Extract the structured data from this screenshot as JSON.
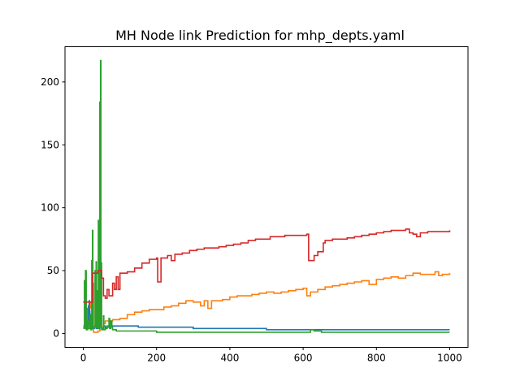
{
  "chart_data": {
    "type": "line",
    "title": "MH Node link Prediction for mhp_depts.yaml",
    "xlabel": "",
    "ylabel": "",
    "xlim": [
      -50,
      1050
    ],
    "ylim": [
      -11,
      228
    ],
    "xticks": [
      0,
      200,
      400,
      600,
      800,
      1000
    ],
    "yticks": [
      0,
      50,
      100,
      150,
      200
    ],
    "grid": false,
    "legend": "none",
    "series": [
      {
        "color": "#1f77b4",
        "points": [
          [
            0,
            5
          ],
          [
            2,
            6
          ],
          [
            4,
            18
          ],
          [
            5,
            6
          ],
          [
            7,
            4
          ],
          [
            9,
            20
          ],
          [
            10,
            6
          ],
          [
            12,
            4
          ],
          [
            14,
            22
          ],
          [
            15,
            8
          ],
          [
            16,
            26
          ],
          [
            17,
            18
          ],
          [
            18,
            6
          ],
          [
            20,
            4
          ],
          [
            22,
            8
          ],
          [
            24,
            5
          ],
          [
            26,
            4
          ],
          [
            30,
            6
          ],
          [
            35,
            4
          ],
          [
            40,
            4
          ],
          [
            45,
            5
          ],
          [
            50,
            4
          ],
          [
            55,
            6
          ],
          [
            60,
            5
          ],
          [
            70,
            6
          ],
          [
            80,
            6
          ],
          [
            100,
            6
          ],
          [
            150,
            5
          ],
          [
            200,
            5
          ],
          [
            250,
            5
          ],
          [
            300,
            4
          ],
          [
            350,
            4
          ],
          [
            400,
            4
          ],
          [
            450,
            4
          ],
          [
            500,
            3
          ],
          [
            550,
            3
          ],
          [
            600,
            3
          ],
          [
            650,
            3
          ],
          [
            700,
            3
          ],
          [
            750,
            3
          ],
          [
            800,
            3
          ],
          [
            850,
            3
          ],
          [
            900,
            3
          ],
          [
            950,
            3
          ],
          [
            1000,
            3
          ]
        ]
      },
      {
        "color": "#ff7f0e",
        "points": [
          [
            0,
            25
          ],
          [
            5,
            25
          ],
          [
            10,
            25
          ],
          [
            15,
            25
          ],
          [
            20,
            20
          ],
          [
            25,
            40
          ],
          [
            28,
            1
          ],
          [
            30,
            1
          ],
          [
            35,
            1
          ],
          [
            40,
            2
          ],
          [
            45,
            3
          ],
          [
            50,
            5
          ],
          [
            55,
            8
          ],
          [
            60,
            10
          ],
          [
            70,
            10
          ],
          [
            80,
            11
          ],
          [
            90,
            11
          ],
          [
            100,
            12
          ],
          [
            120,
            15
          ],
          [
            140,
            17
          ],
          [
            160,
            18
          ],
          [
            180,
            19
          ],
          [
            200,
            19
          ],
          [
            220,
            21
          ],
          [
            240,
            22
          ],
          [
            260,
            24
          ],
          [
            280,
            26
          ],
          [
            300,
            25
          ],
          [
            320,
            22
          ],
          [
            330,
            26
          ],
          [
            340,
            20
          ],
          [
            350,
            26
          ],
          [
            360,
            26
          ],
          [
            380,
            27
          ],
          [
            400,
            29
          ],
          [
            420,
            30
          ],
          [
            440,
            30
          ],
          [
            460,
            31
          ],
          [
            480,
            32
          ],
          [
            500,
            33
          ],
          [
            520,
            32
          ],
          [
            540,
            33
          ],
          [
            560,
            34
          ],
          [
            580,
            35
          ],
          [
            600,
            36
          ],
          [
            610,
            30
          ],
          [
            620,
            33
          ],
          [
            640,
            35
          ],
          [
            660,
            37
          ],
          [
            680,
            38
          ],
          [
            700,
            39
          ],
          [
            720,
            40
          ],
          [
            740,
            41
          ],
          [
            760,
            42
          ],
          [
            780,
            39
          ],
          [
            800,
            43
          ],
          [
            820,
            44
          ],
          [
            840,
            45
          ],
          [
            860,
            44
          ],
          [
            880,
            46
          ],
          [
            900,
            48
          ],
          [
            920,
            47
          ],
          [
            940,
            47
          ],
          [
            960,
            49
          ],
          [
            970,
            46
          ],
          [
            980,
            47
          ],
          [
            1000,
            48
          ]
        ]
      },
      {
        "color": "#2ca02c",
        "points": [
          [
            0,
            4
          ],
          [
            3,
            42
          ],
          [
            5,
            5
          ],
          [
            6,
            50
          ],
          [
            8,
            3
          ],
          [
            12,
            10
          ],
          [
            14,
            4
          ],
          [
            18,
            15
          ],
          [
            20,
            3
          ],
          [
            23,
            58
          ],
          [
            24,
            4
          ],
          [
            25,
            82
          ],
          [
            26,
            4
          ],
          [
            28,
            5
          ],
          [
            32,
            50
          ],
          [
            33,
            5
          ],
          [
            35,
            57
          ],
          [
            36,
            5
          ],
          [
            38,
            34
          ],
          [
            39,
            4
          ],
          [
            41,
            90
          ],
          [
            42,
            6
          ],
          [
            43,
            55
          ],
          [
            44,
            5
          ],
          [
            45,
            184
          ],
          [
            46,
            5
          ],
          [
            47,
            217
          ],
          [
            48,
            6
          ],
          [
            49,
            56
          ],
          [
            50,
            4
          ],
          [
            52,
            3
          ],
          [
            55,
            14
          ],
          [
            56,
            3
          ],
          [
            60,
            4
          ],
          [
            65,
            6
          ],
          [
            70,
            12
          ],
          [
            72,
            4
          ],
          [
            75,
            10
          ],
          [
            78,
            5
          ],
          [
            80,
            3
          ],
          [
            90,
            2
          ],
          [
            100,
            2
          ],
          [
            150,
            2
          ],
          [
            200,
            1
          ],
          [
            300,
            1
          ],
          [
            400,
            1
          ],
          [
            500,
            1
          ],
          [
            600,
            1
          ],
          [
            620,
            3
          ],
          [
            630,
            2
          ],
          [
            650,
            1
          ],
          [
            700,
            1
          ],
          [
            800,
            1
          ],
          [
            900,
            1
          ],
          [
            1000,
            1
          ]
        ]
      },
      {
        "color": "#d62728",
        "points": [
          [
            0,
            25
          ],
          [
            20,
            25
          ],
          [
            25,
            48
          ],
          [
            30,
            48
          ],
          [
            40,
            50
          ],
          [
            50,
            44
          ],
          [
            55,
            30
          ],
          [
            60,
            28
          ],
          [
            65,
            35
          ],
          [
            70,
            30
          ],
          [
            80,
            40
          ],
          [
            85,
            35
          ],
          [
            90,
            45
          ],
          [
            95,
            35
          ],
          [
            100,
            48
          ],
          [
            120,
            49
          ],
          [
            140,
            52
          ],
          [
            160,
            56
          ],
          [
            180,
            59
          ],
          [
            200,
            60
          ],
          [
            203,
            41
          ],
          [
            210,
            41
          ],
          [
            212,
            60
          ],
          [
            220,
            60
          ],
          [
            230,
            62
          ],
          [
            240,
            58
          ],
          [
            250,
            63
          ],
          [
            270,
            64
          ],
          [
            290,
            66
          ],
          [
            310,
            67
          ],
          [
            330,
            68
          ],
          [
            350,
            68
          ],
          [
            370,
            69
          ],
          [
            390,
            70
          ],
          [
            410,
            71
          ],
          [
            430,
            72
          ],
          [
            450,
            74
          ],
          [
            470,
            75
          ],
          [
            490,
            75
          ],
          [
            510,
            77
          ],
          [
            530,
            77
          ],
          [
            550,
            78
          ],
          [
            570,
            78
          ],
          [
            590,
            78
          ],
          [
            610,
            79
          ],
          [
            615,
            58
          ],
          [
            625,
            58
          ],
          [
            630,
            62
          ],
          [
            640,
            65
          ],
          [
            655,
            72
          ],
          [
            660,
            74
          ],
          [
            680,
            75
          ],
          [
            700,
            75
          ],
          [
            720,
            76
          ],
          [
            740,
            77
          ],
          [
            760,
            78
          ],
          [
            780,
            79
          ],
          [
            800,
            80
          ],
          [
            820,
            81
          ],
          [
            840,
            82
          ],
          [
            860,
            82
          ],
          [
            880,
            83
          ],
          [
            890,
            80
          ],
          [
            900,
            79
          ],
          [
            910,
            77
          ],
          [
            920,
            80
          ],
          [
            940,
            81
          ],
          [
            960,
            81
          ],
          [
            980,
            81
          ],
          [
            1000,
            82
          ]
        ]
      }
    ]
  }
}
